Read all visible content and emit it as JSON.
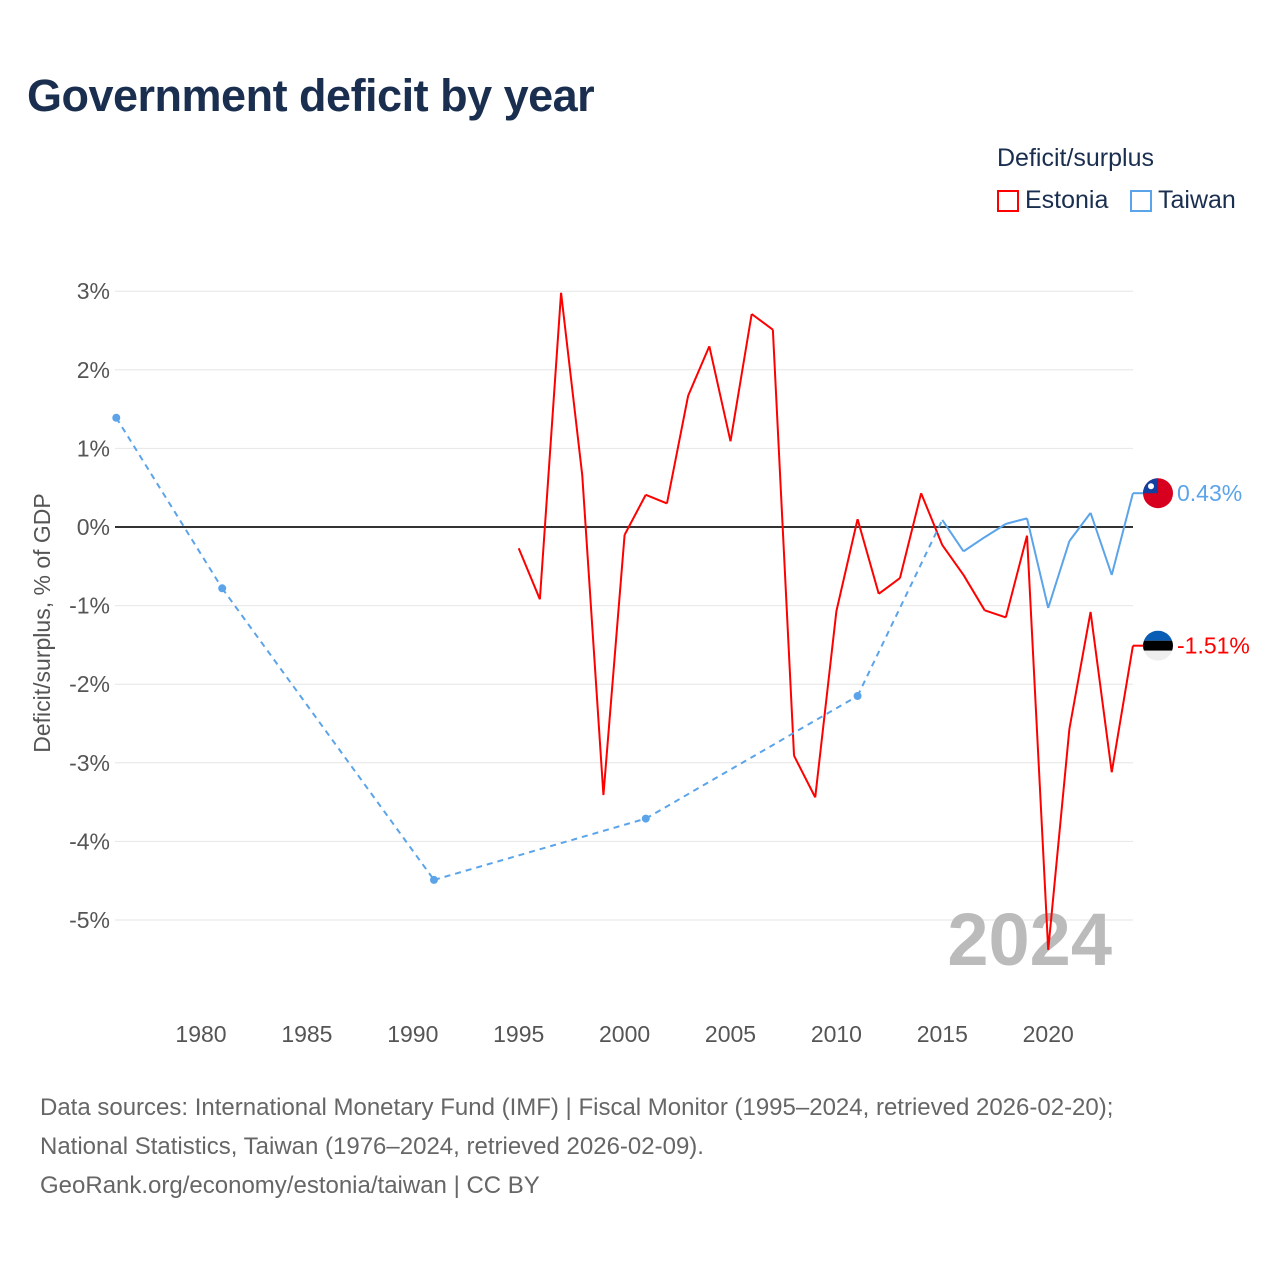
{
  "title": "Government deficit by year",
  "legend": {
    "title": "Deficit/surplus",
    "items": [
      {
        "label": "Estonia",
        "color": "#ff0000"
      },
      {
        "label": "Taiwan",
        "color": "#5ba4ea"
      }
    ]
  },
  "footer": [
    "Data sources: International Monetary Fund (IMF) | Fiscal Monitor (1995–2024, retrieved 2026-02-20);",
    "National Statistics, Taiwan (1976–2024, retrieved 2026-02-09).",
    "GeoRank.org/economy/estonia/taiwan | CC BY"
  ],
  "chart_data": {
    "type": "line",
    "title": "Government deficit by year",
    "ylabel": "Deficit/surplus, % of GDP",
    "xlabel": "",
    "xlim": [
      1975.5,
      2024
    ],
    "ylim": [
      -6,
      3.3
    ],
    "xticks": [
      1980,
      1985,
      1990,
      1995,
      2000,
      2005,
      2010,
      2015,
      2020
    ],
    "xtick_labels": [
      "1980",
      "1985",
      "1990",
      "1995",
      "2000",
      "2005",
      "2010",
      "2015",
      "2020"
    ],
    "yticks": [
      3,
      2,
      1,
      0,
      -1,
      -2,
      -3,
      -4,
      -5
    ],
    "ytick_labels": [
      "3%",
      "2%",
      "1%",
      "0%",
      "-1%",
      "-2%",
      "-3%",
      "-4%",
      "-5%"
    ],
    "year_watermark": "2024",
    "series": [
      {
        "name": "Estonia",
        "color": "#ff0000",
        "end_label": "-1.51%",
        "x": [
          1995,
          1996,
          1997,
          1998,
          1999,
          2000,
          2001,
          2002,
          2003,
          2004,
          2005,
          2006,
          2007,
          2008,
          2009,
          2010,
          2011,
          2012,
          2013,
          2014,
          2015,
          2016,
          2017,
          2018,
          2019,
          2020,
          2021,
          2022,
          2023,
          2024
        ],
        "y": [
          -0.27,
          -0.92,
          2.98,
          0.66,
          -3.41,
          -0.1,
          0.41,
          0.3,
          1.67,
          2.3,
          1.09,
          2.71,
          2.51,
          -2.91,
          -3.44,
          -1.07,
          0.1,
          -0.85,
          -0.65,
          0.43,
          -0.23,
          -0.61,
          -1.06,
          -1.15,
          -0.11,
          -5.38,
          -2.57,
          -1.08,
          -3.12,
          -1.51
        ]
      },
      {
        "name": "Taiwan",
        "color": "#5ba4ea",
        "end_label": "0.43%",
        "x": [
          1976,
          1981,
          1991,
          2001,
          2011,
          2015,
          2016,
          2017,
          2018,
          2019,
          2020,
          2021,
          2022,
          2023,
          2024
        ],
        "y": [
          1.39,
          -0.78,
          -4.49,
          -3.71,
          -2.15,
          0.09,
          -0.31,
          -0.13,
          0.04,
          0.11,
          -1.03,
          -0.18,
          0.18,
          -0.61,
          0.43
        ]
      }
    ]
  }
}
